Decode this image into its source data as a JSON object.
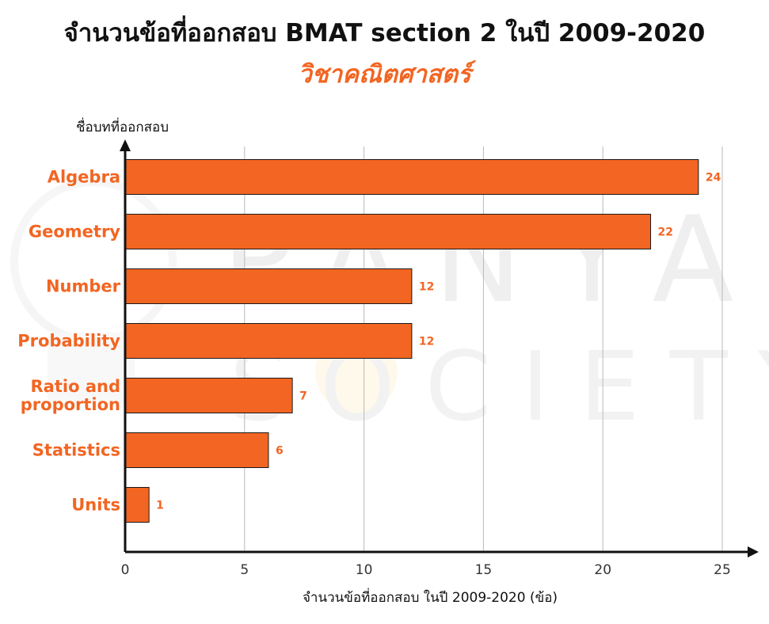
{
  "title": "จำนวนข้อที่ออกสอบ BMAT section 2 ในปี 2009-2020",
  "subtitle": "วิชาคณิตศาสตร์",
  "watermark": {
    "line1": "PANYA",
    "line2": "SOCIETY"
  },
  "colors": {
    "bar": "#f26522",
    "accent": "#f26522",
    "axis": "#111111",
    "grid": "#b9b9b9",
    "watermark": "#f2f2f2"
  },
  "chart_data": {
    "type": "bar",
    "orientation": "horizontal",
    "categories": [
      "Algebra",
      "Geometry",
      "Number",
      "Probability",
      "Ratio and proportion",
      "Statistics",
      "Units"
    ],
    "category_lines": [
      [
        "Algebra"
      ],
      [
        "Geometry"
      ],
      [
        "Number"
      ],
      [
        "Probability"
      ],
      [
        "Ratio and",
        "proportion"
      ],
      [
        "Statistics"
      ],
      [
        "Units"
      ]
    ],
    "values": [
      24,
      22,
      12,
      12,
      7,
      6,
      1
    ],
    "value_labels": [
      "24",
      "22",
      "12",
      "12",
      "7",
      "6",
      "1"
    ],
    "xlim": [
      0,
      25
    ],
    "xticks": [
      0,
      5,
      10,
      15,
      20,
      25
    ],
    "xtick_labels": [
      "0",
      "5",
      "10",
      "15",
      "20",
      "25"
    ],
    "xlabel": "จำนวนข้อที่ออกสอบ ในปี 2009-2020 (ข้อ)",
    "ylabel": "ชื่อบทที่ออกสอบ",
    "grid": "vertical"
  }
}
